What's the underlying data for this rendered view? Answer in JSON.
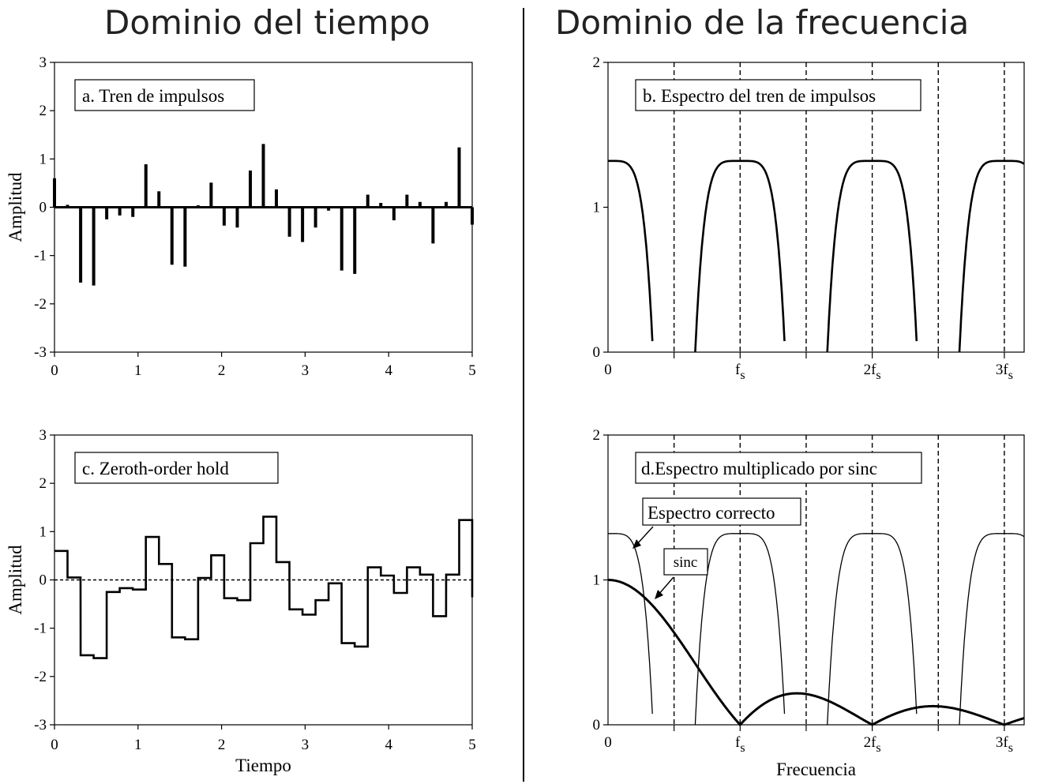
{
  "headings": {
    "left": "Dominio del tiempo",
    "right": "Dominio de la frecuencia"
  },
  "chart_data": [
    {
      "id": "a",
      "type": "bar",
      "title": "a. Tren de impulsos",
      "xlabel": "",
      "ylabel": "Amplitud",
      "xlim": [
        0,
        5
      ],
      "ylim": [
        -3,
        3
      ],
      "xticks": [
        "0",
        "1",
        "2",
        "3",
        "4",
        "5"
      ],
      "yticks": [
        "3",
        "2",
        "1",
        "0",
        "-1",
        "-2",
        "-3"
      ],
      "x": [
        0.0,
        0.156,
        0.313,
        0.469,
        0.625,
        0.781,
        0.938,
        1.094,
        1.25,
        1.406,
        1.563,
        1.719,
        1.875,
        2.031,
        2.188,
        2.344,
        2.5,
        2.656,
        2.813,
        2.969,
        3.125,
        3.281,
        3.438,
        3.594,
        3.75,
        3.906,
        4.063,
        4.219,
        4.375,
        4.531,
        4.688,
        4.844,
        5.0
      ],
      "values": [
        0.6,
        0.05,
        -1.56,
        -1.62,
        -0.25,
        -0.17,
        -0.2,
        0.89,
        0.33,
        -1.19,
        -1.23,
        0.04,
        0.51,
        -0.38,
        -0.42,
        0.76,
        1.31,
        0.37,
        -0.61,
        -0.72,
        -0.42,
        -0.07,
        -1.31,
        -1.38,
        0.26,
        0.09,
        -0.27,
        0.26,
        0.11,
        -0.75,
        0.11,
        1.24,
        -0.36
      ]
    },
    {
      "id": "b",
      "type": "line",
      "title": "b. Espectro del tren de impulsos",
      "xlabel": "",
      "ylabel": "",
      "xlim": [
        0,
        3.15
      ],
      "ylim": [
        0,
        2
      ],
      "xticks": [
        "0",
        "fs",
        "2fs",
        "3fs"
      ],
      "yticks": [
        "2",
        "1",
        "0"
      ],
      "series": [
        {
          "name": "",
          "peak": 1.32,
          "period": 1,
          "half_width": 0.34,
          "shape_power": 5
        }
      ]
    },
    {
      "id": "c",
      "type": "line",
      "title": "c. Zeroth-order hold",
      "xlabel": "Tiempo",
      "ylabel": "Amplitud",
      "xlim": [
        0,
        5
      ],
      "ylim": [
        -3,
        3
      ],
      "xticks": [
        "0",
        "1",
        "2",
        "3",
        "4",
        "5"
      ],
      "yticks": [
        "3",
        "2",
        "1",
        "0",
        "-1",
        "-2",
        "-3"
      ],
      "x": [
        0.0,
        0.156,
        0.313,
        0.469,
        0.625,
        0.781,
        0.938,
        1.094,
        1.25,
        1.406,
        1.563,
        1.719,
        1.875,
        2.031,
        2.188,
        2.344,
        2.5,
        2.656,
        2.813,
        2.969,
        3.125,
        3.281,
        3.438,
        3.594,
        3.75,
        3.906,
        4.063,
        4.219,
        4.375,
        4.531,
        4.688,
        4.844,
        5.0
      ],
      "values": [
        0.6,
        0.05,
        -1.56,
        -1.62,
        -0.25,
        -0.17,
        -0.2,
        0.89,
        0.33,
        -1.19,
        -1.23,
        0.04,
        0.51,
        -0.38,
        -0.42,
        0.76,
        1.31,
        0.37,
        -0.61,
        -0.72,
        -0.42,
        -0.07,
        -1.31,
        -1.38,
        0.26,
        0.09,
        -0.27,
        0.26,
        0.11,
        -0.75,
        0.11,
        1.24,
        -0.36
      ]
    },
    {
      "id": "d",
      "type": "line",
      "title": "d.Espectro multiplicado por sinc",
      "xlabel": "Frecuencia",
      "ylabel": "",
      "xlim": [
        0,
        3.15
      ],
      "ylim": [
        0,
        2
      ],
      "xticks": [
        "0",
        "fs",
        "2fs",
        "3fs"
      ],
      "yticks": [
        "2",
        "1",
        "0"
      ],
      "annotations": [
        "Espectro correcto",
        "sinc"
      ],
      "series": [
        {
          "name": "",
          "peak": 1.32,
          "period": 1,
          "half_width": 0.34,
          "shape_power": 5
        },
        {
          "name": "",
          "function": "abs(sinc(f))",
          "peak": 1.0
        }
      ]
    }
  ]
}
